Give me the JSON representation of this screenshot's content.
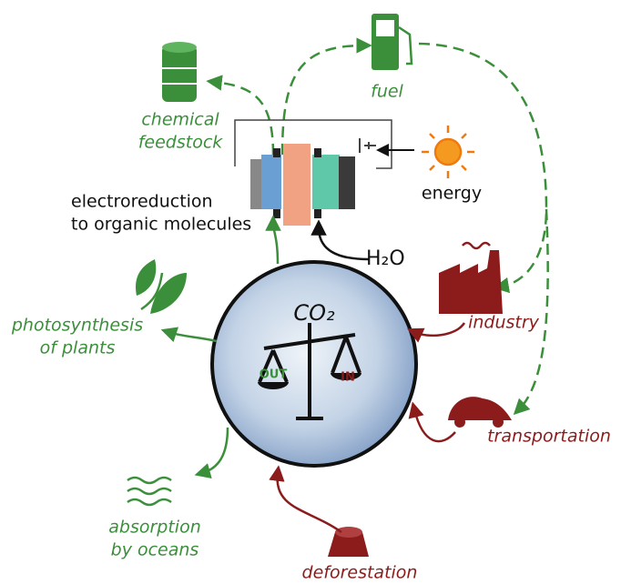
{
  "center": {
    "label": "CO₂",
    "balance": {
      "left": "OUT",
      "right": "IN"
    }
  },
  "nodes": [
    {
      "lines": [
        "fuel"
      ]
    },
    {
      "lines": [
        "chemical",
        "feedstock"
      ]
    },
    {
      "lines": [
        "energy"
      ]
    },
    {
      "lines": [
        "electroreduction",
        "to organic molecules"
      ]
    },
    {
      "lines": [
        "H₂O"
      ]
    },
    {
      "lines": [
        "photosynthesis",
        "of plants"
      ]
    },
    {
      "lines": [
        "industry"
      ]
    },
    {
      "lines": [
        "transportation"
      ]
    },
    {
      "lines": [
        "absorption",
        "by oceans"
      ]
    },
    {
      "lines": [
        "deforestation"
      ]
    }
  ]
}
